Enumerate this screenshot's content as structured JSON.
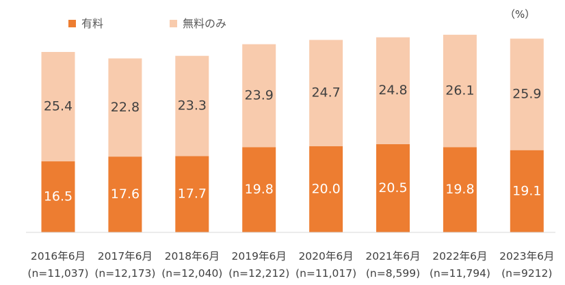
{
  "chart_data": {
    "type": "bar",
    "stacked": true,
    "unit": "（%）",
    "legend_position": "top-left",
    "categories": [
      "2016年6月",
      "2017年6月",
      "2018年6月",
      "2019年6月",
      "2020年6月",
      "2021年6月",
      "2022年6月",
      "2023年6月"
    ],
    "sample_sizes": [
      "(n=11,037)",
      "(n=12,173)",
      "(n=12,040)",
      "(n=12,212)",
      "(n=11,017)",
      "(n=8,599)",
      "(n=11,794)",
      "(n=9212)"
    ],
    "series": [
      {
        "name": "有料",
        "color": "#ED7D31",
        "label_color": "#ffffff",
        "values": [
          16.5,
          17.6,
          17.7,
          19.8,
          20.0,
          20.5,
          19.8,
          19.1
        ]
      },
      {
        "name": "無料のみ",
        "color": "#F8CBAD",
        "label_color": "#404040",
        "values": [
          25.4,
          22.8,
          23.3,
          23.9,
          24.7,
          24.8,
          26.1,
          25.9
        ]
      }
    ],
    "ylim": [
      0,
      48
    ],
    "grid": false
  }
}
